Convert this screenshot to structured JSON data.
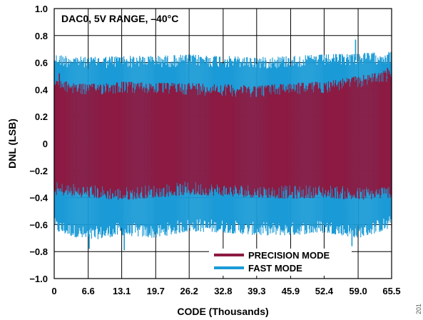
{
  "chart_data": {
    "type": "line",
    "annotation": "DAC0, 5V RANGE, –40°C",
    "xlabel": "CODE (Thousands)",
    "ylabel": "DNL (LSB)",
    "xlim": [
      0,
      65.5
    ],
    "ylim": [
      -1.0,
      1.0
    ],
    "x_ticks": [
      0,
      6.6,
      13.1,
      19.7,
      26.2,
      32.8,
      39.3,
      45.9,
      52.4,
      59.0,
      65.5
    ],
    "x_tick_labels": [
      "0",
      "6.6",
      "13.1",
      "19.7",
      "26.2",
      "32.8",
      "39.3",
      "45.9",
      "52.4",
      "59.0",
      "65.5"
    ],
    "y_ticks": [
      -1.0,
      -0.8,
      -0.6,
      -0.4,
      -0.2,
      0,
      0.2,
      0.4,
      0.6,
      0.8,
      1.0
    ],
    "y_tick_labels": [
      "−1.0",
      "−0.8",
      "−0.6",
      "−0.4",
      "−0.2",
      "0",
      "0.2",
      "0.4",
      "0.6",
      "0.8",
      "1.0"
    ],
    "grid": true,
    "legend_position": "bottom-right",
    "series": [
      {
        "name": "FAST MODE",
        "color": "#1a9ad6",
        "envelope": {
          "x": [
            0,
            6.6,
            13.1,
            19.7,
            26.2,
            32.8,
            39.3,
            45.9,
            52.4,
            59.0,
            65.5
          ],
          "upper": [
            0.66,
            0.64,
            0.65,
            0.65,
            0.66,
            0.65,
            0.64,
            0.65,
            0.66,
            0.67,
            0.68
          ],
          "lower": [
            -0.65,
            -0.72,
            -0.68,
            -0.7,
            -0.65,
            -0.66,
            -0.68,
            -0.68,
            -0.66,
            -0.7,
            -0.63
          ]
        },
        "extremes": [
          {
            "x": 6.8,
            "y": -0.78
          },
          {
            "x": 13.6,
            "y": -0.79
          },
          {
            "x": 58.5,
            "y": 0.77
          },
          {
            "x": 57.8,
            "y": -0.76
          }
        ]
      },
      {
        "name": "PRECISION MODE",
        "color": "#8c1a42",
        "envelope": {
          "x": [
            0,
            6.6,
            13.1,
            19.7,
            26.2,
            32.8,
            39.3,
            45.9,
            52.4,
            59.0,
            65.5
          ],
          "upper": [
            0.47,
            0.44,
            0.46,
            0.45,
            0.45,
            0.44,
            0.43,
            0.45,
            0.46,
            0.5,
            0.55
          ],
          "lower": [
            -0.38,
            -0.4,
            -0.42,
            -0.4,
            -0.38,
            -0.39,
            -0.4,
            -0.41,
            -0.4,
            -0.42,
            -0.4
          ]
        },
        "extremes": [
          {
            "x": 1.0,
            "y": 0.52
          },
          {
            "x": 64.7,
            "y": 0.56
          }
        ]
      }
    ]
  },
  "figure_id": "201"
}
